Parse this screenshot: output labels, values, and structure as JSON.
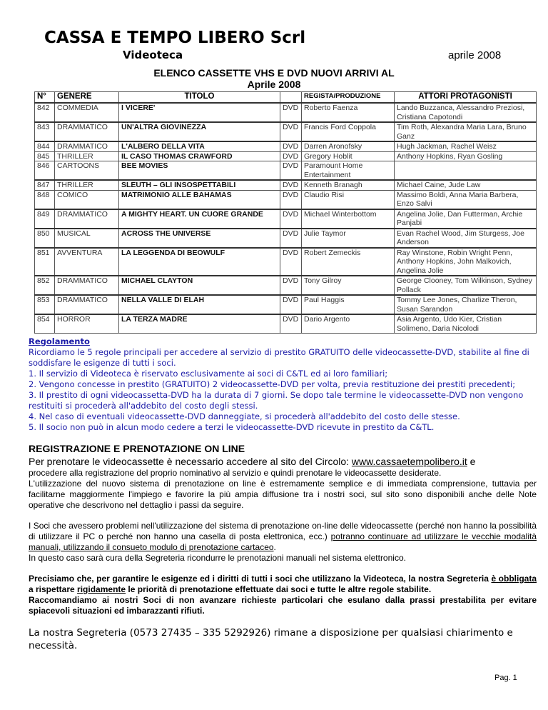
{
  "header": {
    "org": "CASSA E TEMPO LIBERO Scrl",
    "section": "Videoteca",
    "date": "aprile 2008",
    "title": "ELENCO CASSETTE VHS E DVD NUOVI ARRIVI AL",
    "subtitle": "Aprile 2008"
  },
  "table": {
    "headers": [
      "N°",
      "GENERE",
      "TITOLO",
      "",
      "REGISTA/PRODUZIONE",
      "ATTORI PROTAGONISTI"
    ],
    "rows": [
      [
        "842",
        "COMMEDIA",
        "I VICERE'",
        "DVD",
        "Roberto Faenza",
        "Lando Buzzanca, Alessandro Preziosi, Cristiana Capotondi"
      ],
      [
        "843",
        "DRAMMATICO",
        "UN'ALTRA GIOVINEZZA",
        "DVD",
        "Francis Ford Coppola",
        "Tim Roth, Alexandra Maria Lara, Bruno Ganz"
      ],
      [
        "844",
        "DRAMMATICO",
        "L'ALBERO DELLA VITA",
        "DVD",
        "Darren Aronofsky",
        "Hugh Jackman, Rachel Weisz"
      ],
      [
        "845",
        "THRILLER",
        "IL CASO THOMAS CRAWFORD",
        "DVD",
        "Gregory Hoblit",
        "Anthony Hopkins, Ryan Gosling"
      ],
      [
        "846",
        "CARTOONS",
        "BEE MOVIES",
        "DVD",
        "Paramount Home Entertainment",
        ""
      ],
      [
        "847",
        "THRILLER",
        "SLEUTH – GLI INSOSPETTABILI",
        "DVD",
        "Kenneth Branagh",
        "Michael Caine, Jude Law"
      ],
      [
        "848",
        "COMICO",
        "MATRIMONIO ALLE BAHAMAS",
        "DVD",
        "Claudio Risi",
        "Massimo Boldi, Anna Maria Barbera, Enzo Salvi"
      ],
      [
        "849",
        "DRAMMATICO",
        "A MIGHTY HEART. UN CUORE GRANDE",
        "DVD",
        "Michael Winterbottom",
        "Angelina Jolie, Dan Futterman, Archie Panjabi"
      ],
      [
        "850",
        "MUSICAL",
        "ACROSS THE UNIVERSE",
        "DVD",
        "Julie Taymor",
        "Evan Rachel Wood, Jim Sturgess, Joe Anderson"
      ],
      [
        "851",
        "AVVENTURA",
        "LA LEGGENDA DI BEOWULF",
        "DVD",
        "Robert Zemeckis",
        "Ray Winstone, Robin Wright Penn, Anthony Hopkins, John Malkovich, Angelina Jolie"
      ],
      [
        "852",
        "DRAMMATICO",
        "MICHAEL CLAYTON",
        "DVD",
        "Tony Gilroy",
        "George Clooney, Tom Wilkinson, Sydney Pollack"
      ],
      [
        "853",
        "DRAMMATICO",
        "NELLA VALLE DI ELAH",
        "DVD",
        "Paul Haggis",
        "Tommy Lee Jones, Charlize Theron, Susan Sarandon"
      ],
      [
        "854",
        "HORROR",
        "LA TERZA MADRE",
        "DVD",
        "Dario Argento",
        "Asia Argento, Udo Kier, Cristian Solimeno, Daria Nicolodi"
      ]
    ]
  },
  "rules": {
    "heading": "Regolamento",
    "intro": "Ricordiamo le 5 regole principali per accedere al servizio di prestito GRATUITO delle videocassette-DVD, stabilite al fine di soddisfare le esigenze di tutti i soci.",
    "items": [
      "1. Il servizio di Videoteca è riservato esclusivamente ai soci di C&TL ed ai loro familiari;",
      "2. Vengono concesse in prestito (GRATUITO) 2 videocassette-DVD per volta, previa restituzione dei prestiti precedenti;",
      "3. Il prestito di ogni videocassetta-DVD ha la durata di 7 giorni. Se dopo tale termine le videocassette-DVD non vengono restituiti si procederà all'addebito del costo degli stessi.",
      "4. Nel caso di eventuali videocassette-DVD danneggiate, si procederà all'addebito del costo delle stesse.",
      "5. Il socio non può in alcun modo cedere a terzi le videocassette-DVD ricevute in prestito da C&TL."
    ],
    "color": "#1c1ca8"
  },
  "online": {
    "heading": "REGISTRAZIONE E PRENOTAZIONE ON LINE",
    "p1a": "Per prenotare le videocassette è necessario accedere al sito del Circolo: ",
    "link": "www.cassaetempolibero.it",
    "p1b": " e",
    "p1c": "procedere alla registrazione del proprio nominativo al servizio e quindi prenotare le videocassette desiderate.",
    "p1d": "L'utilizzazione del nuovo sistema di prenotazione on line è estremamente semplice e di immediata comprensione, tuttavia per facilitarne maggiormente l'impiego e favorire la più ampia diffusione tra i nostri soci, sul sito sono disponibili anche delle Note operative che descrivono nel dettaglio i passi da seguire.",
    "p2a": "I Soci che avessero problemi nell'utilizzazione del sistema di prenotazione on-line delle videocassette (perché non hanno la possibilità di utilizzare il PC o perché non hanno una casella di posta elettronica, ecc.) ",
    "p2u": "potranno continuare ad utilizzare le vecchie modalità manuali, utilizzando il consueto modulo di prenotazione cartaceo",
    "p2b": ".",
    "p2c": "In questo caso sarà cura della Segreteria ricondurre le prenotazioni manuali nel sistema elettronico.",
    "p3a": "Precisiamo che, per garantire  le esigenze ed i diritti di tutti i soci che utilizzano la Videoteca, la nostra Segreteria ",
    "p3u1": "è obbligata",
    "p3b": " a rispettare ",
    "p3u2": "rigidamente",
    "p3c": " le priorità di prenotazione effettuate dai soci e tutte le altre regole stabilite.",
    "p3d": "Raccomandiamo ai nostri Soci di non avanzare richieste particolari che esulano dalla prassi prestabilita per evitare spiacevoli situazioni ed imbarazzanti rifiuti.",
    "p4": "La nostra Segreteria  (0573 27435 – 335 5292926) rimane a disposizione per qualsiasi chiarimento e necessità."
  },
  "footer": {
    "page": "Pag. 1"
  }
}
